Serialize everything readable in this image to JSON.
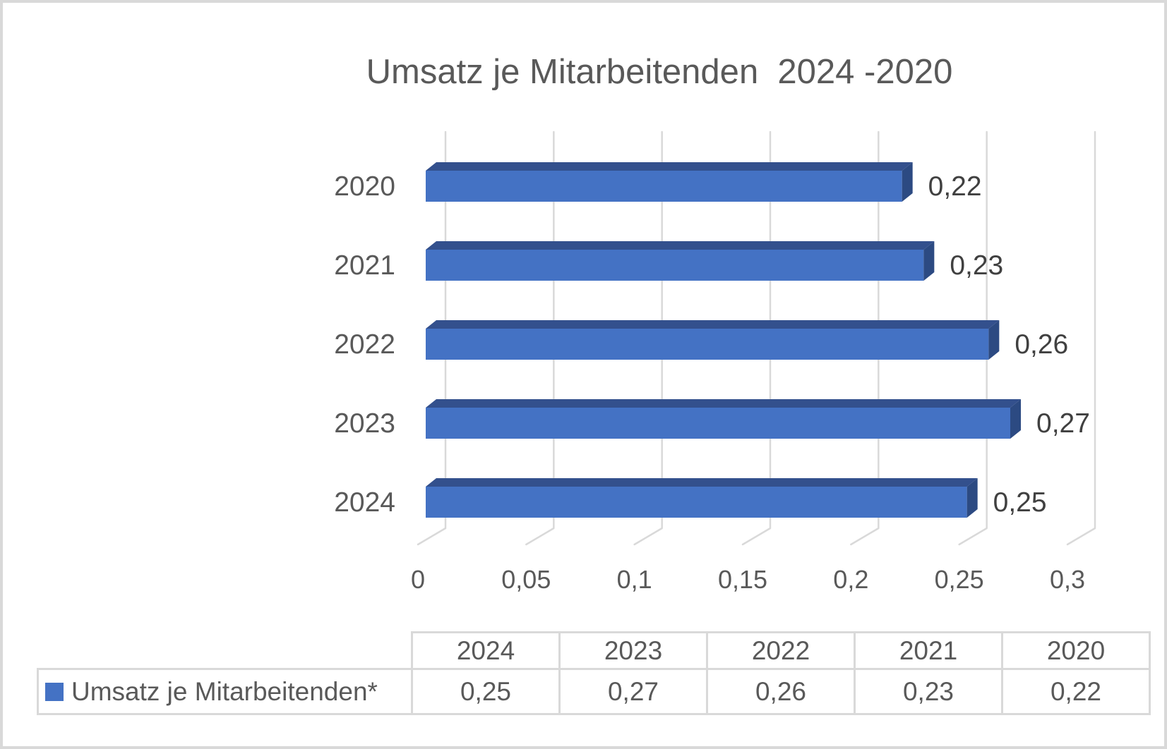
{
  "chart": {
    "title": "Umsatz je Mitarbeitenden  2024 -2020"
  },
  "chart_data": {
    "type": "bar",
    "orientation": "horizontal",
    "style": "3d",
    "title": "Umsatz je Mitarbeitenden  2024 -2020",
    "categories": [
      "2020",
      "2021",
      "2022",
      "2023",
      "2024"
    ],
    "values": [
      0.22,
      0.23,
      0.26,
      0.27,
      0.25
    ],
    "value_labels": [
      "0,22",
      "0,23",
      "0,26",
      "0,27",
      "0,25"
    ],
    "series_name": "Umsatz je Mitarbeitenden*",
    "xlabel": "",
    "ylabel": "",
    "xlim": [
      0,
      0.3
    ],
    "x_ticks": [
      0,
      0.05,
      0.1,
      0.15,
      0.2,
      0.25,
      0.3
    ],
    "x_tick_labels": [
      "0",
      "0,05",
      "0,1",
      "0,15",
      "0,2",
      "0,25",
      "0,3"
    ],
    "grid": true,
    "legend_position": "bottom-table",
    "colors": {
      "bar_front": "#4472C4",
      "bar_top": "#33508D",
      "bar_side": "#2C4A82",
      "gridline": "#d9d9d9",
      "axis_text": "#595959",
      "category_text": "#595959",
      "value_label_text": "#404040"
    }
  },
  "table": {
    "columns": [
      "2024",
      "2023",
      "2022",
      "2021",
      "2020"
    ],
    "row_label": "Umsatz je Mitarbeitenden*",
    "values": [
      "0,25",
      "0,27",
      "0,26",
      "0,23",
      "0,22"
    ],
    "legend_color": "#4472C4"
  }
}
